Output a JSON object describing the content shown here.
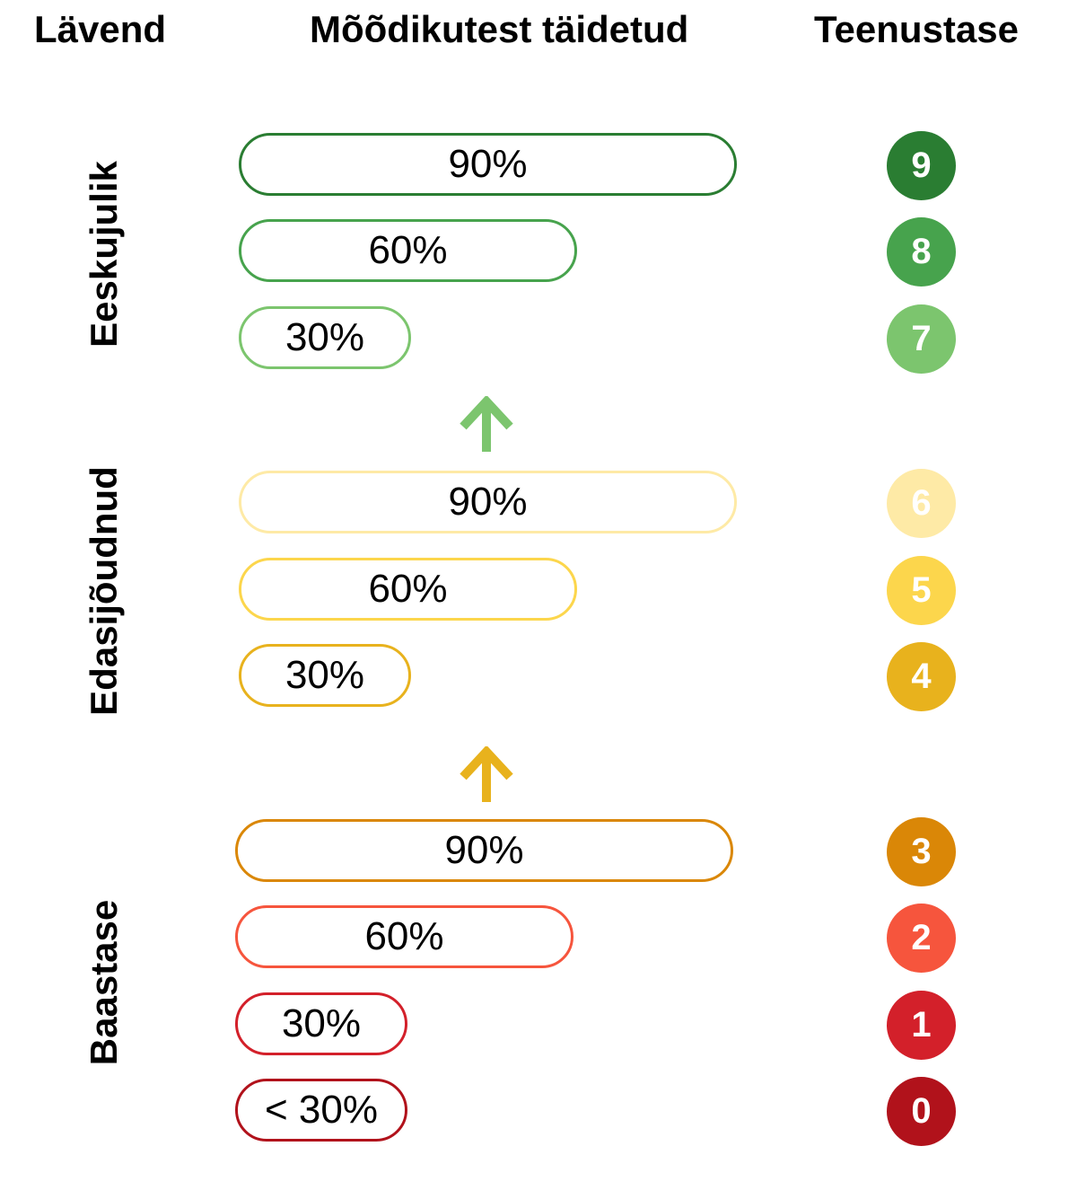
{
  "headers": {
    "threshold": "Lävend",
    "metrics_met": "Mõõdikutest täidetud",
    "service_level": "Teenustase"
  },
  "groups": [
    {
      "label": "Eeskujulik",
      "color": "#2a7d32"
    },
    {
      "label": "Edasijõudnud",
      "color": "#e8b21d"
    },
    {
      "label": "Baastase",
      "color": "#b1121b"
    }
  ],
  "rows": [
    {
      "percent": "90%",
      "level": "9",
      "color": "#2a7d32"
    },
    {
      "percent": "60%",
      "level": "8",
      "color": "#47a34d"
    },
    {
      "percent": "30%",
      "level": "7",
      "color": "#7cc56e"
    },
    {
      "percent": "90%",
      "level": "6",
      "color": "#feeaa6"
    },
    {
      "percent": "60%",
      "level": "5",
      "color": "#fcd64c"
    },
    {
      "percent": "30%",
      "level": "4",
      "color": "#e8b21d"
    },
    {
      "percent": "90%",
      "level": "3",
      "color": "#da8707"
    },
    {
      "percent": "60%",
      "level": "2",
      "color": "#f6553d"
    },
    {
      "percent": "30%",
      "level": "1",
      "color": "#d3202a"
    },
    {
      "percent": "< 30%",
      "level": "0",
      "color": "#b1121b"
    }
  ],
  "arrows": [
    {
      "color": "#7cc56e",
      "icon": "arrow-up-icon"
    },
    {
      "color": "#e8b21d",
      "icon": "arrow-up-icon"
    }
  ]
}
